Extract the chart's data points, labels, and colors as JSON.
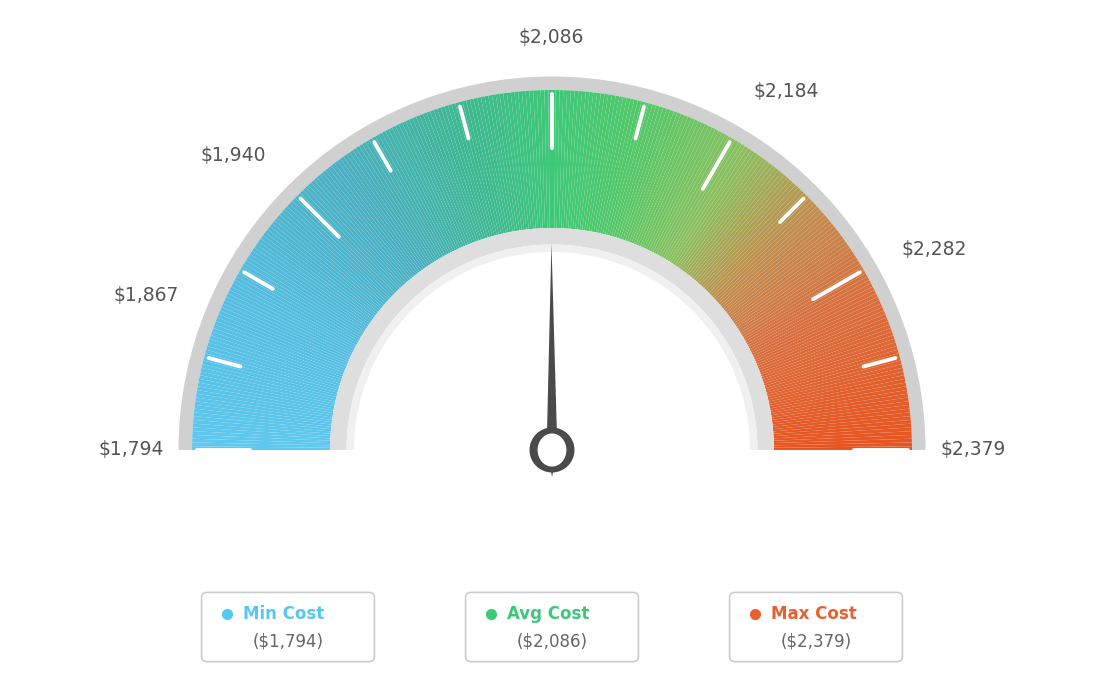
{
  "min_val": 1794,
  "max_val": 2379,
  "avg_val": 2086,
  "labels": {
    "min_label": "$1,794",
    "max_label": "$2,379",
    "v1867": "$1,867",
    "v1940": "$1,940",
    "v2086": "$2,086",
    "v2184": "$2,184",
    "v2282": "$2,282"
  },
  "color_stops": [
    [
      0.0,
      "#5EC8F0"
    ],
    [
      0.15,
      "#55BDE0"
    ],
    [
      0.3,
      "#4AAFC0"
    ],
    [
      0.42,
      "#3DB890"
    ],
    [
      0.5,
      "#3DC878"
    ],
    [
      0.58,
      "#52C86A"
    ],
    [
      0.68,
      "#8BC060"
    ],
    [
      0.76,
      "#C09050"
    ],
    [
      0.85,
      "#D87040"
    ],
    [
      1.0,
      "#E85520"
    ]
  ],
  "outer_rim_color": "#D0D0D0",
  "inner_rim_outer_color": "#DEDEDE",
  "inner_rim_inner_color": "#F0F0F0",
  "needle_color": "#4A4A4A",
  "pivot_outer_color": "#4A4A4A",
  "pivot_inner_color": "#FFFFFF",
  "background": "#FFFFFF",
  "label_color": "#555555",
  "legend": {
    "min_color": "#55C8F0",
    "avg_color": "#3DC878",
    "max_color": "#E86030",
    "min_text": "Min Cost",
    "avg_text": "Avg Cost",
    "max_text": "Max Cost",
    "min_value": "($1,794)",
    "avg_value": "($2,086)",
    "max_value": "($2,379)"
  },
  "tick_values": [
    1794,
    1867,
    1940,
    2086,
    2184,
    2282,
    2379
  ],
  "label_values": [
    1794,
    1867,
    1940,
    2086,
    2184,
    2282,
    2379
  ]
}
